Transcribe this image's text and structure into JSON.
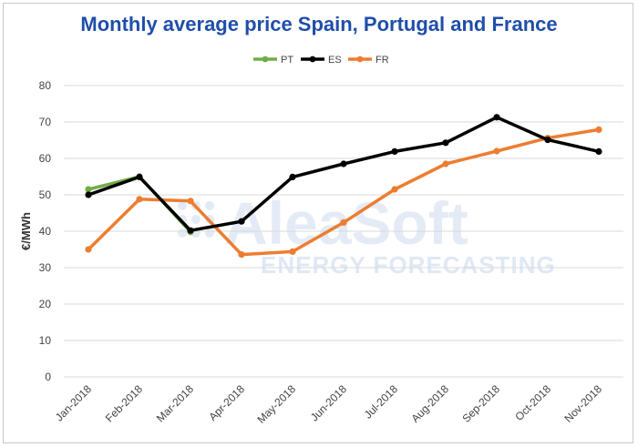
{
  "chart_data": {
    "type": "line",
    "title": "Monthly average price Spain, Portugal and France",
    "ylabel": "€/MWh",
    "xlabel": "",
    "ylim": [
      0,
      80
    ],
    "yticks": [
      "0",
      "10",
      "20",
      "30",
      "40",
      "50",
      "60",
      "70",
      "80"
    ],
    "grid": "horizontal",
    "legend_position": "top-center",
    "categories": [
      "Jan-2018",
      "Feb-2018",
      "Mar-2018",
      "Apr-2018",
      "May-2018",
      "Jun-2018",
      "Jul-2018",
      "Aug-2018",
      "Sep-2018",
      "Oct-2018",
      "Nov-2018"
    ],
    "series": [
      {
        "name": "PT",
        "color": "#70ad47",
        "values": [
          51.5,
          55.0,
          39.8,
          null,
          null,
          null,
          null,
          null,
          null,
          null,
          null
        ]
      },
      {
        "name": "ES",
        "color": "#000000",
        "values": [
          50.0,
          54.9,
          40.2,
          42.7,
          54.9,
          58.5,
          61.9,
          64.3,
          71.3,
          65.1,
          61.9
        ]
      },
      {
        "name": "FR",
        "color": "#ed7d31",
        "values": [
          35.0,
          48.8,
          48.3,
          33.6,
          34.4,
          42.4,
          51.5,
          58.5,
          62.0,
          65.6,
          67.9
        ]
      }
    ],
    "watermark": {
      "line1": "AleaSoft",
      "line2": "ENERGY FORECASTING"
    }
  }
}
